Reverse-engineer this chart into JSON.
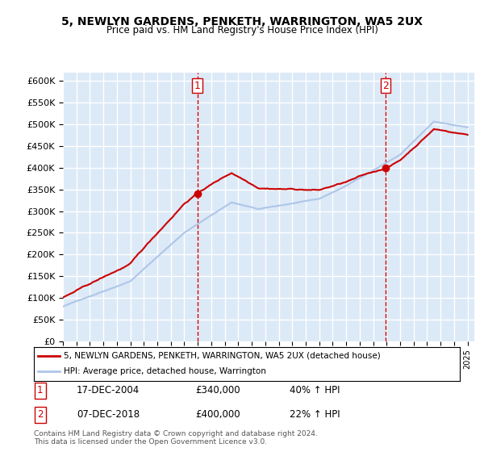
{
  "title": "5, NEWLYN GARDENS, PENKETH, WARRINGTON, WA5 2UX",
  "subtitle": "Price paid vs. HM Land Registry's House Price Index (HPI)",
  "legend_line1": "5, NEWLYN GARDENS, PENKETH, WARRINGTON, WA5 2UX (detached house)",
  "legend_line2": "HPI: Average price, detached house, Warrington",
  "footnote1": "Contains HM Land Registry data © Crown copyright and database right 2024.",
  "footnote2": "This data is licensed under the Open Government Licence v3.0.",
  "sale1_label": "1",
  "sale1_date": "17-DEC-2004",
  "sale1_price": "£340,000",
  "sale1_hpi": "40% ↑ HPI",
  "sale2_label": "2",
  "sale2_date": "07-DEC-2018",
  "sale2_price": "£400,000",
  "sale2_hpi": "22% ↑ HPI",
  "sale1_x": 2004.96,
  "sale1_y": 340000,
  "sale2_x": 2018.92,
  "sale2_y": 400000,
  "ylim": [
    0,
    620000
  ],
  "xlim_start": 1995.0,
  "xlim_end": 2025.5,
  "hpi_color": "#aec6e8",
  "price_color": "#cc0000",
  "vline_color": "#cc0000",
  "plot_bg": "#dce9f7",
  "grid_color": "#ffffff"
}
